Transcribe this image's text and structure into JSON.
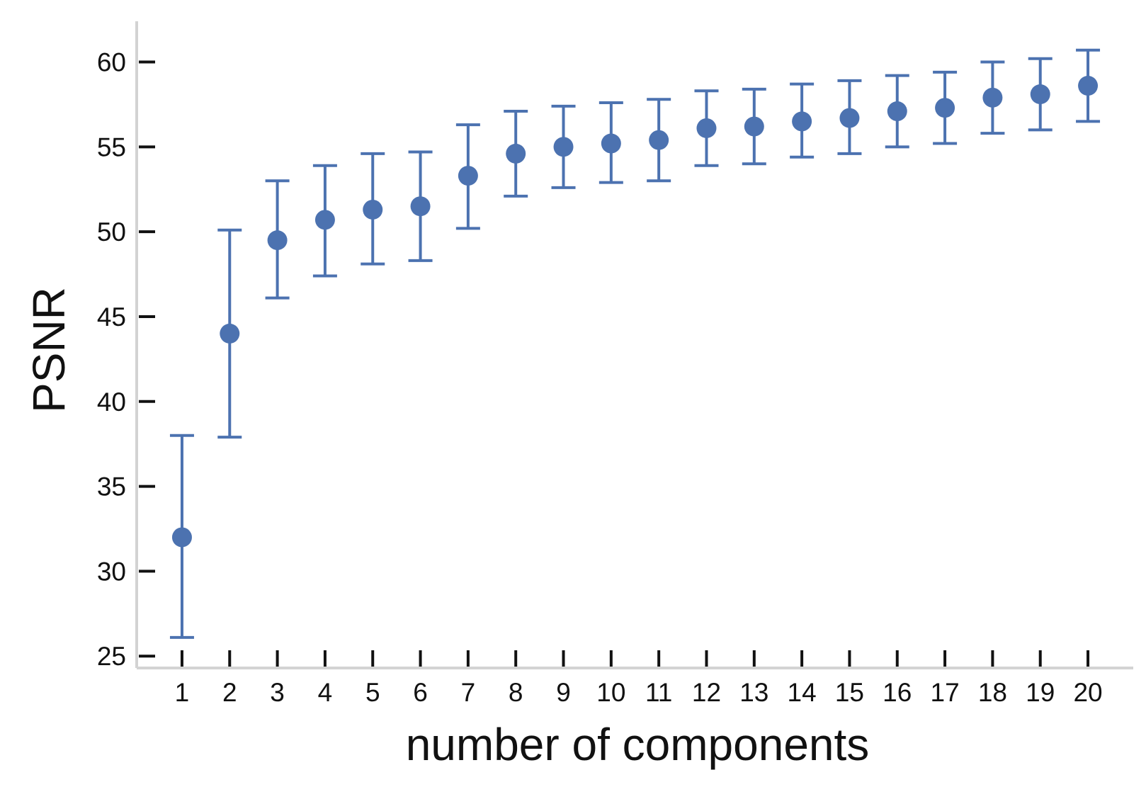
{
  "chart_data": {
    "type": "scatter",
    "title": "",
    "xlabel": "number of components",
    "ylabel": "PSNR",
    "x": [
      1,
      2,
      3,
      4,
      5,
      6,
      7,
      8,
      9,
      10,
      11,
      12,
      13,
      14,
      15,
      16,
      17,
      18,
      19,
      20
    ],
    "x_tick_labels": [
      "1",
      "2",
      "3",
      "4",
      "5",
      "6",
      "7",
      "8",
      "9",
      "10",
      "11",
      "12",
      "13",
      "14",
      "15",
      "16",
      "17",
      "18",
      "19",
      "20"
    ],
    "y_ticks": [
      25,
      30,
      35,
      40,
      45,
      50,
      55,
      60
    ],
    "y_tick_labels": [
      "25",
      "30",
      "35",
      "40",
      "45",
      "50",
      "55",
      "60"
    ],
    "xlim": [
      0.05,
      20.95
    ],
    "ylim": [
      24.3,
      62.4
    ],
    "grid": false,
    "legend": "none",
    "series": [
      {
        "values": [
          32.0,
          44.0,
          49.5,
          50.7,
          51.3,
          51.5,
          53.3,
          54.6,
          55.0,
          55.2,
          55.4,
          56.1,
          56.2,
          56.5,
          56.7,
          57.1,
          57.3,
          57.9,
          58.1,
          58.6
        ],
        "error_low": [
          26.1,
          37.9,
          46.1,
          47.4,
          48.1,
          48.3,
          50.2,
          52.1,
          52.6,
          52.9,
          53.0,
          53.9,
          54.0,
          54.4,
          54.6,
          55.0,
          55.2,
          55.8,
          56.0,
          56.5
        ],
        "error_high": [
          38.0,
          50.1,
          53.0,
          53.9,
          54.6,
          54.7,
          56.3,
          57.1,
          57.4,
          57.6,
          57.8,
          58.3,
          58.4,
          58.7,
          58.9,
          59.2,
          59.4,
          60.0,
          60.2,
          60.7
        ],
        "color": "#4c72b0"
      }
    ]
  },
  "colors": {
    "series": "#4c72b0",
    "spine": "#d3d3d3",
    "tick": "#111111"
  }
}
